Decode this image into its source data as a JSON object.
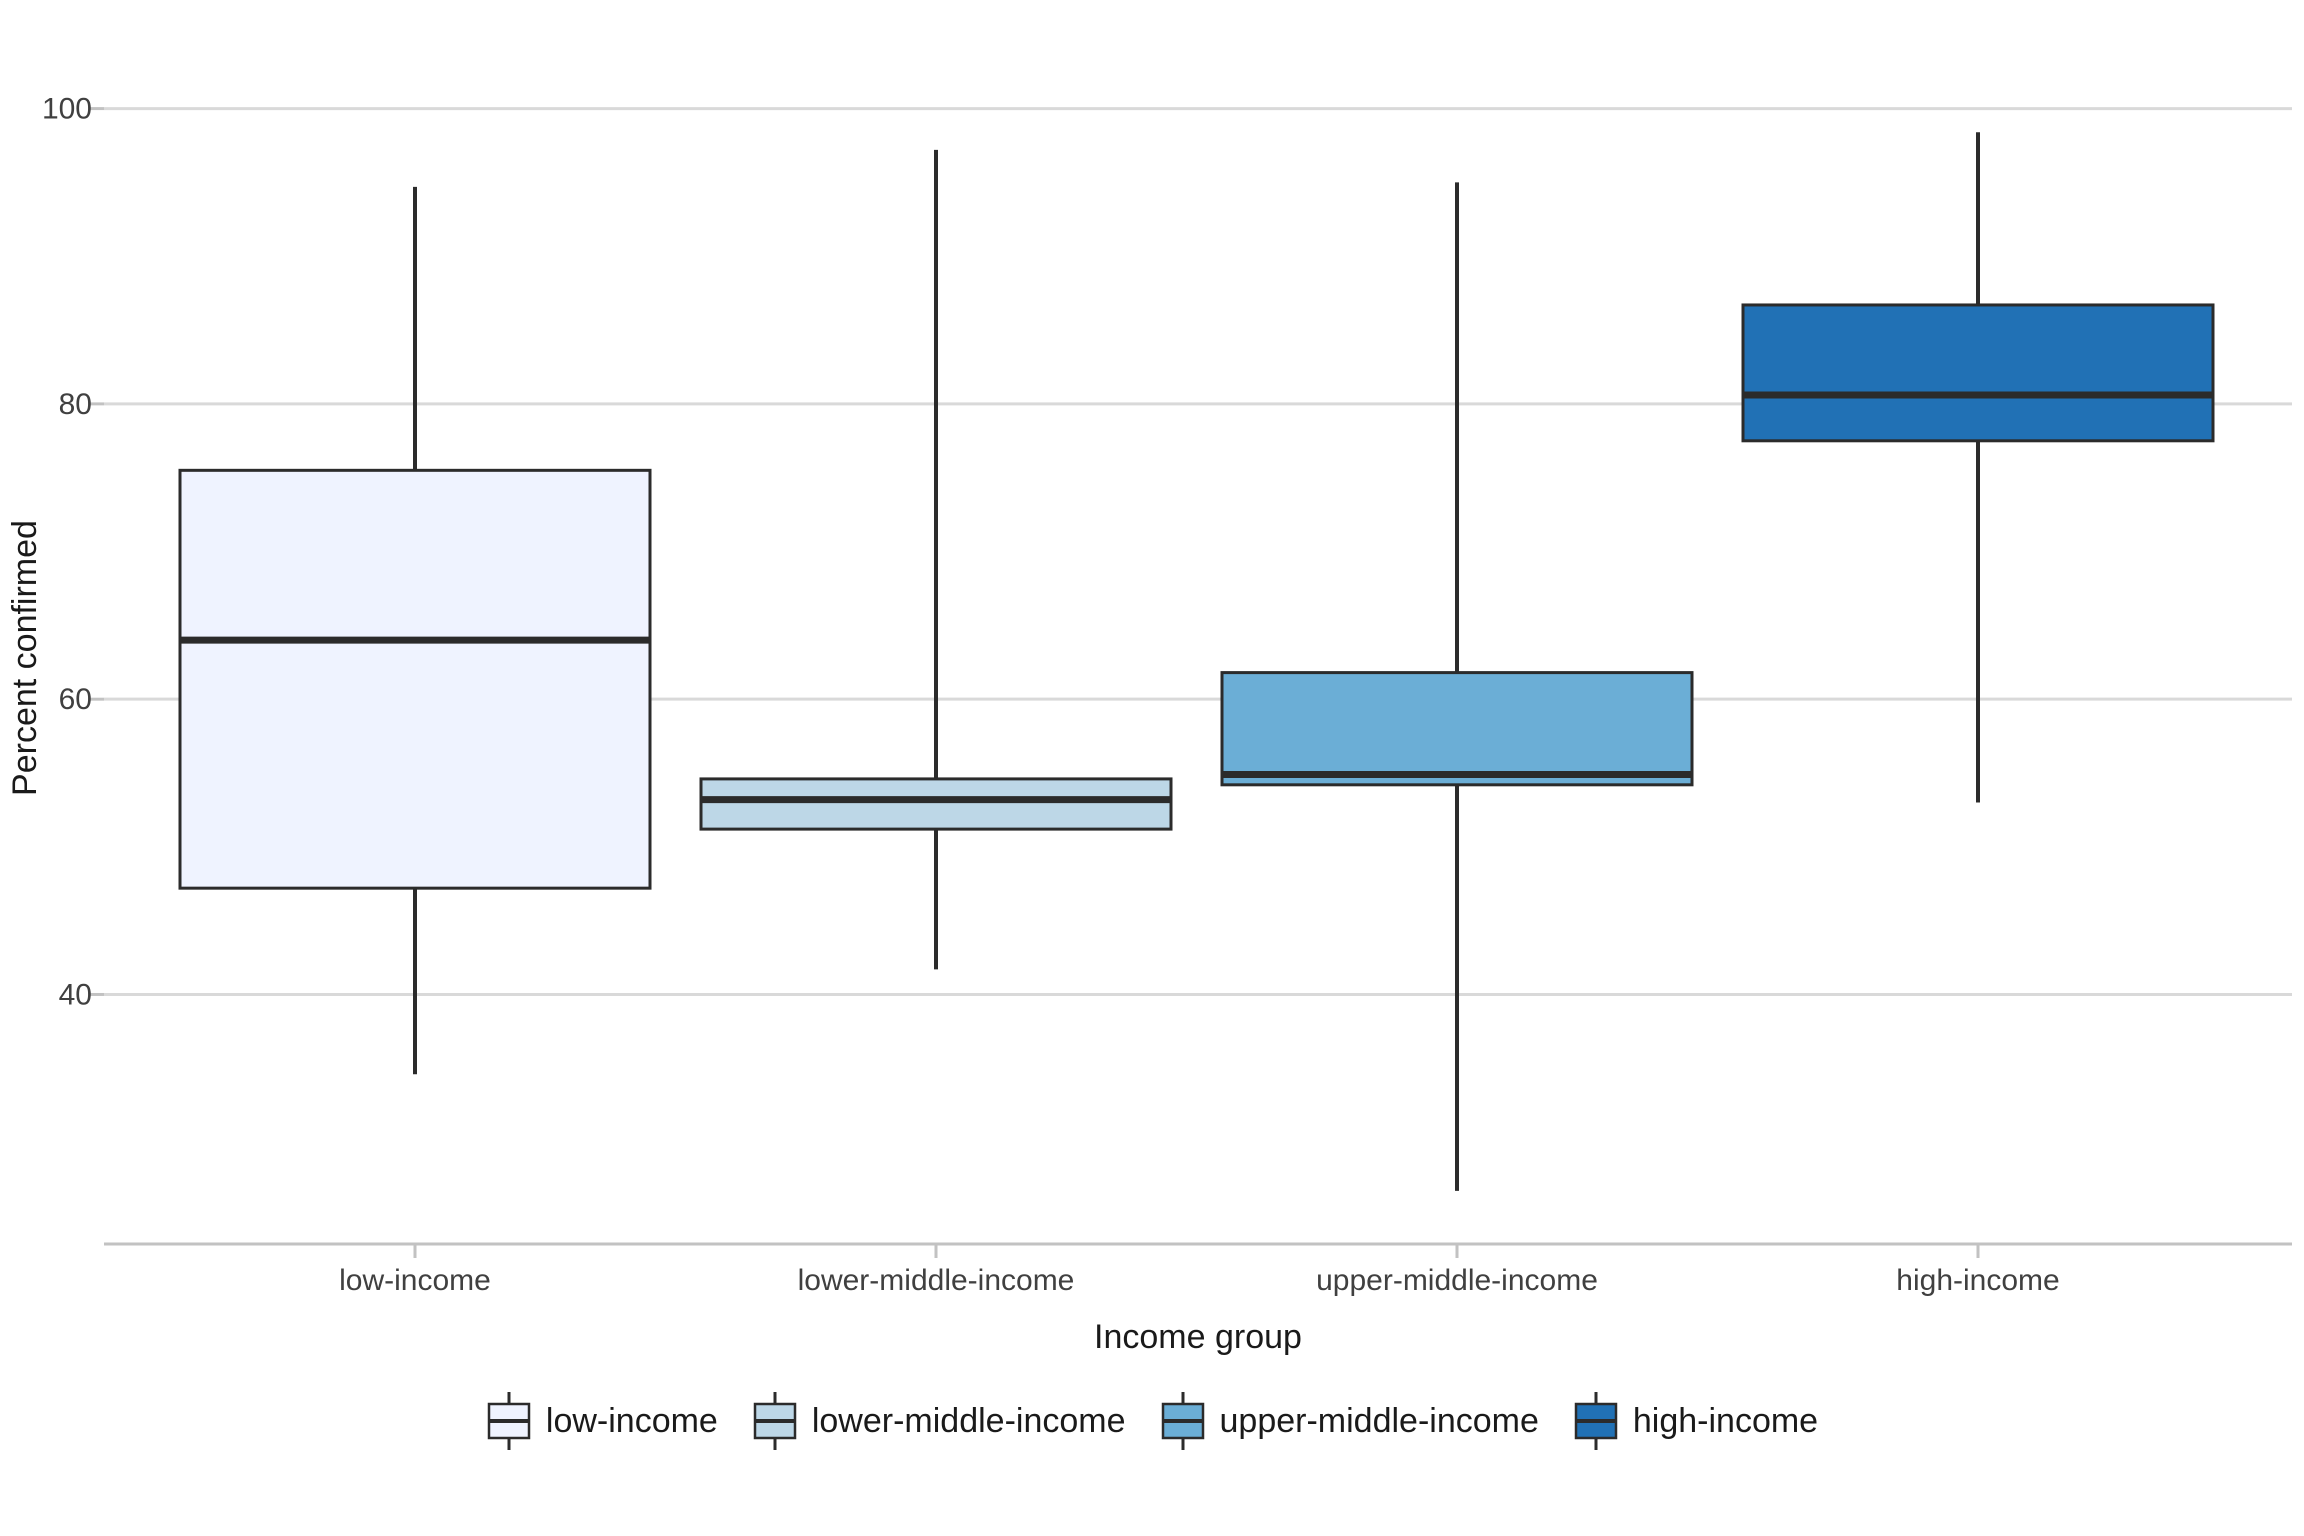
{
  "chart_data": {
    "type": "boxplot",
    "title": "",
    "xlabel": "Income group",
    "ylabel": "Percent confirmed",
    "categories": [
      "low-income",
      "lower-middle-income",
      "upper-middle-income",
      "high-income"
    ],
    "series": [
      {
        "name": "low-income",
        "color": "#eff3ff",
        "min": 34.6,
        "q1": 47.2,
        "median": 64.0,
        "q3": 75.5,
        "max": 94.7
      },
      {
        "name": "lower-middle-income",
        "color": "#bdd7e7",
        "min": 41.7,
        "q1": 51.2,
        "median": 53.2,
        "q3": 54.6,
        "max": 97.2
      },
      {
        "name": "upper-middle-income",
        "color": "#6baed6",
        "min": 26.7,
        "q1": 54.2,
        "median": 54.9,
        "q3": 61.8,
        "max": 95.0
      },
      {
        "name": "high-income",
        "color": "#2171b5",
        "min": 53.0,
        "q1": 77.5,
        "median": 80.6,
        "q3": 86.7,
        "max": 98.4
      }
    ],
    "yticks": [
      40,
      60,
      80,
      100
    ],
    "ylim": [
      23.1,
      106.0
    ],
    "grid": "horizontal",
    "legend_position": "bottom",
    "legend_items": [
      "low-income",
      "lower-middle-income",
      "upper-middle-income",
      "high-income"
    ],
    "colors": {
      "box_outline": "#2b2b2b",
      "median_line": "#2b2b2b",
      "gridline": "#d9d9d9",
      "axis_line": "#c2c2c2",
      "tick_label": "#404040",
      "axis_title": "#1a1a1a",
      "background": "#ffffff"
    }
  }
}
